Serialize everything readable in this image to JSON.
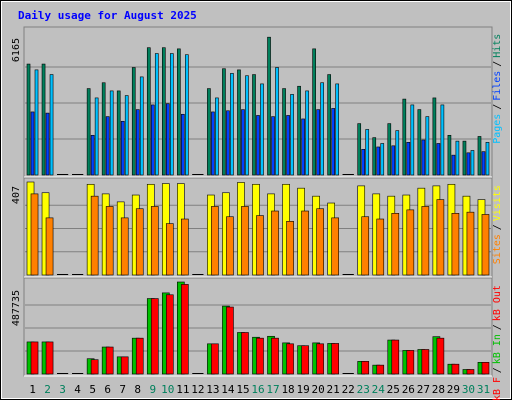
{
  "title": "Daily usage for August 2025",
  "colors": {
    "background": "#c0c0c0",
    "panel": "#c0c0c0",
    "title": "#0000ff",
    "hits": "#00805c",
    "files": "#0040ff",
    "pages": "#00c0ff",
    "visits": "#ffff00",
    "sites": "#ff8000",
    "kb_in": "#00c000",
    "kb_out": "#ff0000",
    "kb_f": "#ff0000",
    "weekend_label": "#00805c",
    "weekday_label": "#000000"
  },
  "chart_data": [
    {
      "type": "bar",
      "panel": "hits-files-pages",
      "y_max_label": "6165",
      "ylim": [
        0,
        6165
      ],
      "categories": [
        "1",
        "2",
        "3",
        "4",
        "5",
        "6",
        "7",
        "8",
        "9",
        "10",
        "11",
        "12",
        "13",
        "14",
        "15",
        "16",
        "17",
        "18",
        "19",
        "20",
        "21",
        "22",
        "23",
        "24",
        "25",
        "26",
        "27",
        "28",
        "29",
        "30",
        "31"
      ],
      "weekend_days": [
        "2",
        "3",
        "9",
        "10",
        "16",
        "17",
        "23",
        "24",
        "30",
        "31"
      ],
      "legend": [
        "Pages",
        "Files",
        "Hits"
      ],
      "series": [
        {
          "name": "Hits",
          "values": [
            4750,
            4750,
            0,
            0,
            3700,
            3950,
            3600,
            4600,
            5450,
            5450,
            5400,
            0,
            3700,
            4550,
            4500,
            4300,
            5900,
            3700,
            3800,
            5400,
            4300,
            0,
            2200,
            1600,
            2200,
            3250,
            2800,
            3300,
            1700,
            1450,
            1650
          ]
        },
        {
          "name": "Files",
          "values": [
            2700,
            2650,
            0,
            0,
            1700,
            2500,
            2300,
            2800,
            3000,
            3050,
            2600,
            0,
            2700,
            2750,
            2800,
            2550,
            2500,
            2550,
            2400,
            2800,
            2850,
            0,
            1100,
            1200,
            1250,
            1400,
            1500,
            1350,
            850,
            950,
            1000
          ]
        },
        {
          "name": "Pages",
          "values": [
            4500,
            4300,
            0,
            0,
            3300,
            3600,
            3400,
            4200,
            5200,
            5200,
            5150,
            0,
            3300,
            4350,
            4250,
            3900,
            4600,
            3450,
            3600,
            3950,
            3900,
            0,
            1950,
            1350,
            1900,
            3000,
            2500,
            3000,
            1450,
            1050,
            1400
          ]
        }
      ]
    },
    {
      "type": "bar",
      "panel": "visits-sites",
      "y_max_label": "407",
      "ylim": [
        0,
        407
      ],
      "legend": [
        "Sites",
        "Visits"
      ],
      "series": [
        {
          "name": "Visits",
          "values": [
            407,
            360,
            0,
            0,
            397,
            355,
            320,
            350,
            397,
            400,
            400,
            0,
            350,
            360,
            405,
            397,
            355,
            397,
            380,
            345,
            315,
            0,
            390,
            355,
            345,
            350,
            380,
            390,
            397,
            345,
            330
          ]
        },
        {
          "name": "Sites",
          "values": [
            355,
            250,
            0,
            0,
            345,
            300,
            250,
            290,
            300,
            225,
            245,
            0,
            300,
            255,
            300,
            260,
            280,
            235,
            280,
            290,
            250,
            0,
            255,
            245,
            270,
            285,
            300,
            330,
            270,
            275,
            265
          ]
        }
      ]
    },
    {
      "type": "bar",
      "panel": "kb",
      "y_max_label": "487735",
      "ylim": [
        0,
        487735
      ],
      "legend": [
        "kB F",
        "kB In",
        "kB Out"
      ],
      "series": [
        {
          "name": "kB In",
          "values": [
            170000,
            170000,
            0,
            0,
            81000,
            143000,
            91000,
            190000,
            400000,
            430000,
            487735,
            0,
            160000,
            360000,
            220000,
            195000,
            200000,
            165000,
            150000,
            165000,
            162000,
            0,
            67000,
            47000,
            180000,
            125000,
            130000,
            198000,
            52000,
            24000,
            62000
          ]
        },
        {
          "name": "kB Out",
          "values": [
            170000,
            170000,
            0,
            0,
            76000,
            143000,
            91000,
            190000,
            400000,
            420000,
            475000,
            0,
            160000,
            355000,
            220000,
            190000,
            190000,
            160000,
            150000,
            160000,
            162000,
            0,
            67000,
            47000,
            180000,
            125000,
            130000,
            190000,
            52000,
            24000,
            62000
          ]
        }
      ]
    }
  ]
}
